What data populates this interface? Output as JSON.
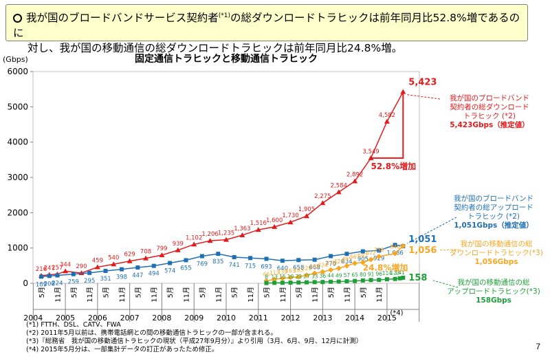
{
  "headline": {
    "line1_a": "我が国のブロードバンドサービス契約者",
    "line1_sup": "(*1)",
    "line1_b": "の総ダウンロードトラヒックは前年同月比52.8%増であるのに",
    "line2": "対し、我が国の移動通信の総ダウンロードトラヒックは前年同月比24.8%増。"
  },
  "chart_data": {
    "type": "line",
    "title": "固定通信トラヒックと移動通信トラヒック",
    "ylabel": "(Gbps)",
    "ylim": [
      0,
      6000
    ],
    "yticks": [
      0,
      1000,
      2000,
      3000,
      4000,
      5000,
      6000
    ],
    "x_ticks": [
      {
        "label": "5月",
        "x": 0
      },
      {
        "label": "11月",
        "x": 1
      },
      {
        "label": "5月",
        "x": 2
      },
      {
        "label": "11月",
        "x": 3
      },
      {
        "label": "5月",
        "x": 4
      },
      {
        "label": "11月",
        "x": 5
      },
      {
        "label": "5月",
        "x": 6
      },
      {
        "label": "11月",
        "x": 7
      },
      {
        "label": "5月",
        "x": 8
      },
      {
        "label": "11月",
        "x": 9
      },
      {
        "label": "5月",
        "x": 10
      },
      {
        "label": "11月",
        "x": 11
      },
      {
        "label": "5月",
        "x": 12
      },
      {
        "label": "11月",
        "x": 13
      },
      {
        "label": "5月",
        "x": 14
      },
      {
        "label": "11月",
        "x": 15
      },
      {
        "label": "5月",
        "x": 16
      },
      {
        "label": "11月",
        "x": 17
      },
      {
        "label": "5月",
        "x": 18
      },
      {
        "label": "11月",
        "x": 19
      },
      {
        "label": "5月",
        "x": 20
      },
      {
        "label": "11月",
        "x": 21
      }
    ],
    "year_labels": [
      {
        "label": "2004",
        "x": 0.5
      },
      {
        "label": "2005",
        "x": 2.5
      },
      {
        "label": "2006",
        "x": 4.5
      },
      {
        "label": "2007",
        "x": 6.5
      },
      {
        "label": "2008",
        "x": 8.5
      },
      {
        "label": "2009",
        "x": 10.5
      },
      {
        "label": "2010",
        "x": 12.5
      },
      {
        "label": "2011",
        "x": 14.5
      },
      {
        "label": "2012",
        "x": 16.5
      },
      {
        "label": "2013",
        "x": 18.5
      },
      {
        "label": "2014",
        "x": 20.5
      },
      {
        "label": "2015",
        "x": 22.5
      }
    ],
    "x_note": "(*4)",
    "series": [
      {
        "name": "我が国のブロードバンド契約者の総ダウンロードトラヒック",
        "color": "#e31a1c",
        "marker": "triangle",
        "points": [
          {
            "x": 0,
            "y": 216,
            "label": "216"
          },
          {
            "x": 0.5,
            "y": 241,
            "label": "241"
          },
          {
            "x": 1,
            "y": 257,
            "label": "257"
          },
          {
            "x": 1.5,
            "y": 344,
            "label": "344"
          },
          {
            "x": 2.5,
            "y": 290,
            "label": "290"
          },
          {
            "x": 3.5,
            "y": 459,
            "label": "459"
          },
          {
            "x": 4.5,
            "y": 540,
            "label": "540"
          },
          {
            "x": 5.5,
            "y": 629,
            "label": "629"
          },
          {
            "x": 6.5,
            "y": 708,
            "label": "708"
          },
          {
            "x": 7.5,
            "y": 799,
            "label": "799"
          },
          {
            "x": 8.5,
            "y": 939,
            "label": "939"
          },
          {
            "x": 9.5,
            "y": 1102,
            "label": "1,102"
          },
          {
            "x": 10.5,
            "y": 1206,
            "label": "1,206"
          },
          {
            "x": 11.5,
            "y": 1235,
            "label": "1,235"
          },
          {
            "x": 12.5,
            "y": 1363,
            "label": "1,363"
          },
          {
            "x": 13.5,
            "y": 1516,
            "label": "1,516"
          },
          {
            "x": 14.5,
            "y": 1600,
            "label": "1,600"
          },
          {
            "x": 15.5,
            "y": 1730,
            "label": "1,730"
          },
          {
            "x": 16.5,
            "y": 1905,
            "label": "1,905"
          },
          {
            "x": 17.5,
            "y": 2275,
            "label": "2,275"
          },
          {
            "x": 18.5,
            "y": 2584,
            "label": "2,584"
          },
          {
            "x": 19.5,
            "y": 2892,
            "label": "2,892"
          },
          {
            "x": 20.5,
            "y": 3549,
            "label": "3,549"
          },
          {
            "x": 21.5,
            "y": 4582,
            "label": "4,582"
          },
          {
            "x": 22.5,
            "y": 5423,
            "label": "5,423"
          }
        ]
      },
      {
        "name": "我が国のブロードバンド契約者の総アップロードトラヒック",
        "color": "#1f6fb4",
        "marker": "square",
        "points": [
          {
            "x": 0,
            "y": 189,
            "label": "189"
          },
          {
            "x": 0.5,
            "y": 208,
            "label": "208"
          },
          {
            "x": 1,
            "y": 224,
            "label": "224"
          },
          {
            "x": 2,
            "y": 259,
            "label": "259"
          },
          {
            "x": 3,
            "y": 295,
            "label": "295"
          },
          {
            "x": 4,
            "y": 351,
            "label": "351"
          },
          {
            "x": 5,
            "y": 398,
            "label": "398"
          },
          {
            "x": 6,
            "y": 447,
            "label": "447"
          },
          {
            "x": 7,
            "y": 494,
            "label": "494"
          },
          {
            "x": 8,
            "y": 574,
            "label": "574"
          },
          {
            "x": 9,
            "y": 655,
            "label": "655"
          },
          {
            "x": 10,
            "y": 769,
            "label": "769"
          },
          {
            "x": 11,
            "y": 835,
            "label": "835"
          },
          {
            "x": 12,
            "y": 741,
            "label": "741"
          },
          {
            "x": 13,
            "y": 715,
            "label": "715"
          },
          {
            "x": 14,
            "y": 693,
            "label": "693"
          },
          {
            "x": 15,
            "y": 640,
            "label": "640"
          },
          {
            "x": 16,
            "y": 658,
            "label": "658"
          },
          {
            "x": 17,
            "y": 668,
            "label": "668"
          },
          {
            "x": 18,
            "y": 770,
            "label": "770"
          },
          {
            "x": 19,
            "y": 834,
            "label": "834"
          },
          {
            "x": 20,
            "y": 905,
            "label": "905"
          },
          {
            "x": 21,
            "y": 929,
            "label": "929"
          },
          {
            "x": 22,
            "y": 1086,
            "label": "1,086"
          },
          {
            "x": 22.5,
            "y": 1051,
            "label": "1,051"
          }
        ]
      },
      {
        "name": "我が国の移動通信の総ダウンロードトラヒック",
        "color": "#f5a623",
        "marker": "diamond",
        "points": [
          {
            "x": 14,
            "y": 66,
            "label": "66"
          },
          {
            "x": 14.5,
            "y": 112,
            "label": "112"
          },
          {
            "x": 15,
            "y": 139,
            "label": "139"
          },
          {
            "x": 15.5,
            "y": 163,
            "label": "163"
          },
          {
            "x": 16,
            "y": 183,
            "label": "183"
          },
          {
            "x": 16.5,
            "y": 229,
            "label": "229"
          },
          {
            "x": 17,
            "y": 285,
            "label": "285"
          },
          {
            "x": 17.5,
            "y": 324,
            "label": "324"
          },
          {
            "x": 18,
            "y": 378,
            "label": "378"
          },
          {
            "x": 18.5,
            "y": 426,
            "label": "426"
          },
          {
            "x": 19,
            "y": 495,
            "label": "495"
          },
          {
            "x": 19.5,
            "y": 567,
            "label": "567"
          },
          {
            "x": 20,
            "y": 592,
            "label": "592"
          },
          {
            "x": 20.5,
            "y": 672,
            "label": "672"
          },
          {
            "x": 21,
            "y": 758,
            "label": "758"
          },
          {
            "x": 22,
            "y": 846,
            "label": "846"
          },
          {
            "x": 22.5,
            "y": 1056,
            "label": "1,056"
          }
        ]
      },
      {
        "name": "我が国の移動通信の総アップロードトラヒック",
        "color": "#1f9e3a",
        "marker": "square",
        "points": [
          {
            "x": 14,
            "y": 8,
            "label": "8"
          },
          {
            "x": 14.5,
            "y": 13,
            "label": "13"
          },
          {
            "x": 15,
            "y": 15,
            "label": "15"
          },
          {
            "x": 15.5,
            "y": 19,
            "label": "19"
          },
          {
            "x": 16,
            "y": 23,
            "label": "23"
          },
          {
            "x": 16.5,
            "y": 27,
            "label": "27"
          },
          {
            "x": 17,
            "y": 33,
            "label": "33"
          },
          {
            "x": 17.5,
            "y": 36,
            "label": "36"
          },
          {
            "x": 18,
            "y": 44,
            "label": "44"
          },
          {
            "x": 18.5,
            "y": 49,
            "label": "49"
          },
          {
            "x": 19,
            "y": 57,
            "label": "57"
          },
          {
            "x": 19.5,
            "y": 65,
            "label": "65"
          },
          {
            "x": 20,
            "y": 80,
            "label": "80"
          },
          {
            "x": 20.5,
            "y": 91,
            "label": "91"
          },
          {
            "x": 21,
            "y": 96,
            "label": "96"
          },
          {
            "x": 21.5,
            "y": 114,
            "label": "114"
          },
          {
            "x": 22,
            "y": 123,
            "label": "123"
          },
          {
            "x": 22.3,
            "y": 141,
            "label": "141"
          },
          {
            "x": 22.5,
            "y": 158,
            "label": "158"
          }
        ]
      }
    ],
    "growth_labels": {
      "fixed": "52.8%増加",
      "mobile": "24.8%増加"
    },
    "annotations": {
      "fixed_down": {
        "lines": [
          "我が国のブロードバンド",
          "契約者の総ダウンロード",
          "トラヒック (*2)"
        ],
        "value": "5,423Gbps（推定値）"
      },
      "fixed_up": {
        "lines": [
          "我が国のブロードバンド",
          "契約者の総アップロード",
          "トラヒック (*2)"
        ],
        "value": "1,051Gbps（推定値）"
      },
      "mobile_down": {
        "lines": [
          "我が国の移動通信の総",
          "ダウンロードトラヒック(*3)"
        ],
        "value": "1,056Gbps"
      },
      "mobile_up": {
        "lines": [
          "我が国の移動通信の総",
          "アップロードトラヒック(*3)"
        ],
        "value": "158Gbps"
      }
    }
  },
  "notes": [
    "(*1) FTTH、DSL、CATV、FWA",
    "(*2) 2011年5月以前は、携帯電話網との間の移動通信トラヒックの一部が含まれる。",
    "(*3)『総務省　我が国の移動通信トラヒックの現状（平成27年9月分）』より引用（3月、6月、9月、12月に計測）",
    "(*4) 2015年5月分は、一部集計データの訂正があったため修正。"
  ],
  "page_number": "7"
}
